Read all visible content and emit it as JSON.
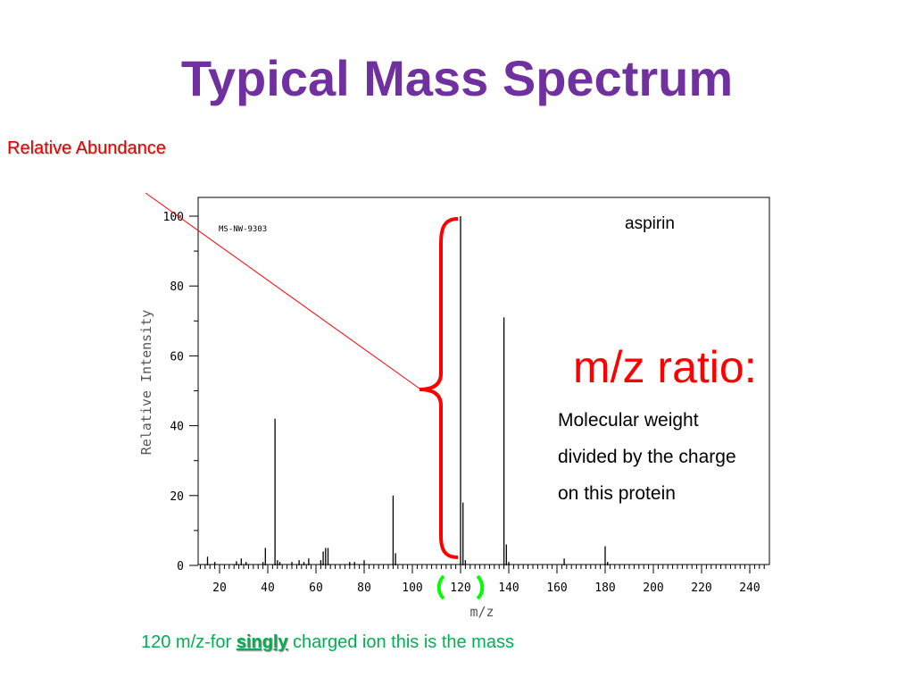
{
  "title": "Typical Mass Spectrum",
  "relative_abundance_label": "Relative Abundance",
  "ratio_heading": "m/z ratio:",
  "description_lines": [
    "Molecular weight",
    "divided by the charge",
    "on this protein"
  ],
  "bottom_note": {
    "prefix": "120 m/z-for ",
    "emphasis": "singly",
    "suffix": " charged ion this is the mass"
  },
  "colors": {
    "title": "#7030a0",
    "annotation_red": "#ff0000",
    "highlight_green": "#00ff00",
    "note_green": "#00b050"
  },
  "chart_data": {
    "type": "bar",
    "compound": "aspirin",
    "id_label": "MS-NW-9303",
    "xlabel": "m/z",
    "ylabel": "Relative Intensity",
    "xlim": [
      10,
      250
    ],
    "ylim": [
      0,
      100
    ],
    "x_ticks": [
      20,
      40,
      60,
      80,
      100,
      120,
      140,
      160,
      180,
      200,
      220,
      240
    ],
    "y_ticks": [
      0,
      20,
      40,
      60,
      80,
      100
    ],
    "peaks": [
      {
        "mz": 15,
        "intensity": 2.5
      },
      {
        "mz": 18,
        "intensity": 1
      },
      {
        "mz": 27,
        "intensity": 1.2
      },
      {
        "mz": 29,
        "intensity": 2
      },
      {
        "mz": 31,
        "intensity": 1
      },
      {
        "mz": 38,
        "intensity": 1
      },
      {
        "mz": 39,
        "intensity": 5
      },
      {
        "mz": 43,
        "intensity": 42
      },
      {
        "mz": 44,
        "intensity": 1.5
      },
      {
        "mz": 45,
        "intensity": 1
      },
      {
        "mz": 50,
        "intensity": 1
      },
      {
        "mz": 53,
        "intensity": 1.5
      },
      {
        "mz": 55,
        "intensity": 1
      },
      {
        "mz": 57,
        "intensity": 2
      },
      {
        "mz": 62,
        "intensity": 1.5
      },
      {
        "mz": 63,
        "intensity": 4
      },
      {
        "mz": 64,
        "intensity": 5
      },
      {
        "mz": 65,
        "intensity": 5
      },
      {
        "mz": 74,
        "intensity": 1
      },
      {
        "mz": 76,
        "intensity": 1
      },
      {
        "mz": 80,
        "intensity": 1.5
      },
      {
        "mz": 92,
        "intensity": 20
      },
      {
        "mz": 93,
        "intensity": 3.5
      },
      {
        "mz": 120,
        "intensity": 100
      },
      {
        "mz": 121,
        "intensity": 18
      },
      {
        "mz": 122,
        "intensity": 1.5
      },
      {
        "mz": 138,
        "intensity": 71
      },
      {
        "mz": 139,
        "intensity": 6
      },
      {
        "mz": 140,
        "intensity": 1
      },
      {
        "mz": 163,
        "intensity": 2
      },
      {
        "mz": 180,
        "intensity": 5.5
      },
      {
        "mz": 181,
        "intensity": 1
      }
    ]
  }
}
